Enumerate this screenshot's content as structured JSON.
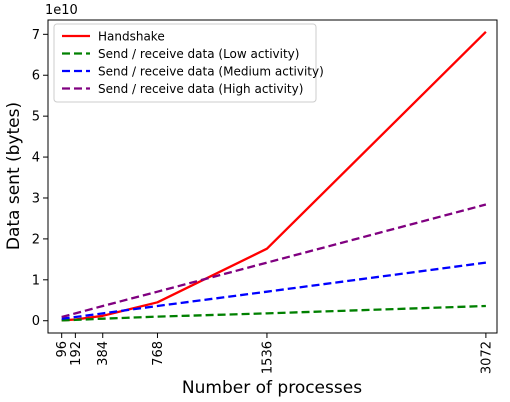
{
  "chart_data": {
    "type": "line",
    "xlabel": "Number of processes",
    "ylabel": "Data sent (bytes)",
    "y_offset_label": "1e10",
    "x_ticks": [
      96,
      192,
      384,
      768,
      1536,
      3072
    ],
    "y_ticks": [
      0,
      1,
      2,
      3,
      4,
      5,
      6,
      7
    ],
    "y_unit_scale": 10000000000,
    "xlim": [
      0,
      3150
    ],
    "ylim": [
      -0.3,
      7.35
    ],
    "grid": false,
    "legend_position": "upper-left",
    "series": [
      {
        "name": "Handshake",
        "color": "#ff0000",
        "dash": "solid",
        "x": [
          96,
          192,
          384,
          768,
          1536,
          3072
        ],
        "y": [
          0.01,
          0.03,
          0.12,
          0.45,
          1.76,
          7.06
        ]
      },
      {
        "name": "Send / receive data (Low activity)",
        "color": "#008000",
        "dash": "dashed",
        "x": [
          96,
          192,
          384,
          768,
          1536,
          3072
        ],
        "y": [
          0.01,
          0.02,
          0.05,
          0.1,
          0.18,
          0.36
        ]
      },
      {
        "name": "Send / receive data (Medium activity)",
        "color": "#0000ff",
        "dash": "dashed",
        "x": [
          96,
          192,
          384,
          768,
          1536,
          3072
        ],
        "y": [
          0.05,
          0.09,
          0.18,
          0.36,
          0.71,
          1.42
        ]
      },
      {
        "name": "Send / receive data (High activity)",
        "color": "#800080",
        "dash": "dashed",
        "x": [
          96,
          192,
          384,
          768,
          1536,
          3072
        ],
        "y": [
          0.09,
          0.18,
          0.36,
          0.71,
          1.42,
          2.84
        ]
      }
    ]
  }
}
